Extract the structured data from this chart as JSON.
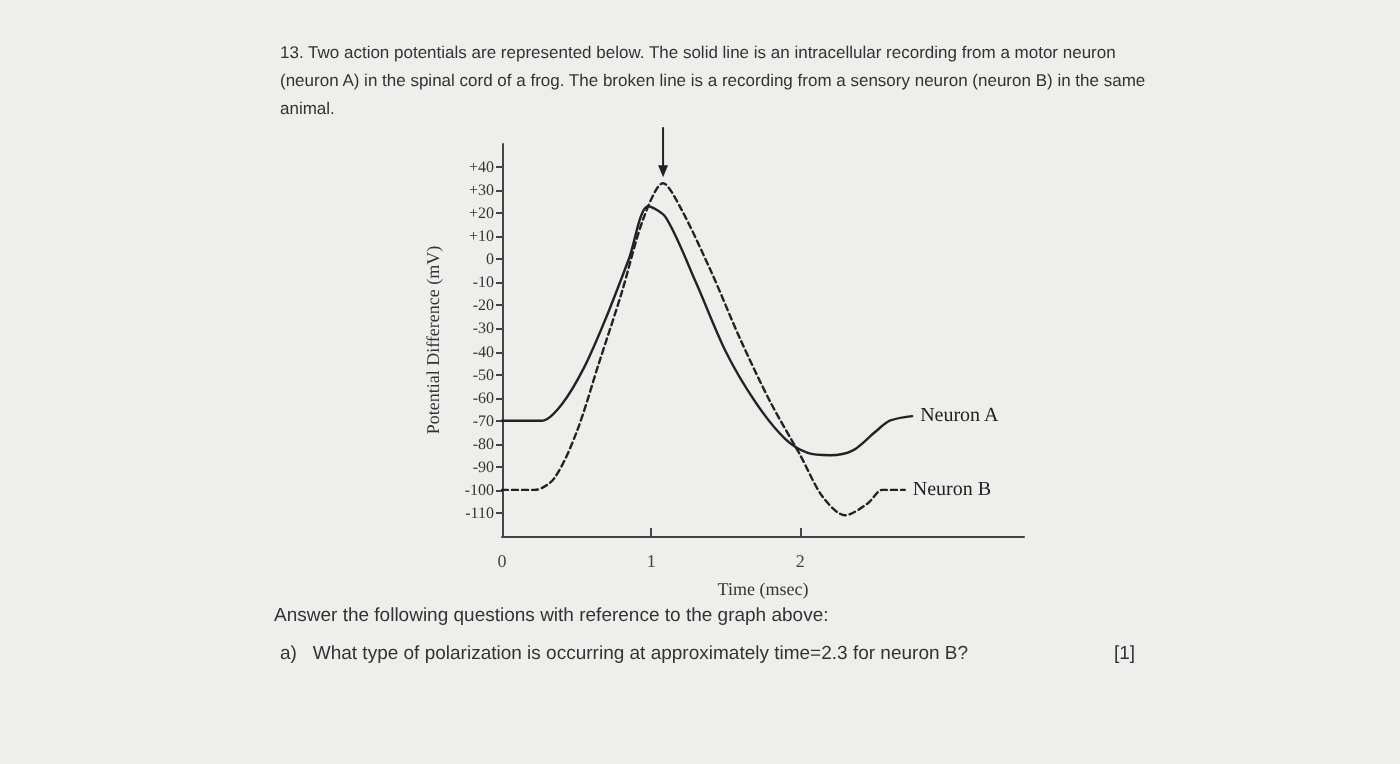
{
  "chart_data": {
    "type": "line",
    "title": "13. Two action potentials are represented below. The solid line is an intracellular recording from a motor neuron (neuron A) in the spinal cord of a frog. The broken line is a recording from a sensory neuron (neuron B) in the same animal.",
    "xlabel": "Time (msec)",
    "ylabel": "Potential Difference (mV)",
    "annotations": [
      "Answer the following questions with reference to the graph above:",
      "a)   What type of polarization is occurring at approximately time=2.3 for neuron B?",
      "[1]"
    ],
    "xlim": [
      0,
      3.5
    ],
    "xticks": [
      0,
      1,
      2
    ],
    "ylim": [
      -120,
      50
    ],
    "yticks": [
      {
        "value": 40,
        "label": "+40"
      },
      {
        "value": 30,
        "label": "+30"
      },
      {
        "value": 20,
        "label": "+20"
      },
      {
        "value": 10,
        "label": "+10"
      },
      0,
      -10,
      -20,
      -30,
      -40,
      -50,
      -60,
      -70,
      -80,
      -90,
      -100,
      -110
    ],
    "grid": false,
    "legend": false,
    "marker": "none",
    "series": [
      {
        "name": "Neuron A",
        "color": "#222222",
        "line_style": "solid",
        "x": [
          0,
          0.27,
          0.4,
          0.55,
          0.7,
          0.85,
          0.98,
          1.1,
          1.3,
          1.5,
          1.7,
          1.9,
          2.05,
          2.2,
          2.35,
          2.5,
          2.6,
          2.75
        ],
        "values": [
          -70,
          -70,
          -63,
          -47,
          -25,
          0,
          23,
          18,
          -10,
          -40,
          -62,
          -78,
          -84,
          -85,
          -83,
          -75,
          -70,
          -68
        ]
      },
      {
        "name": "Neuron B",
        "color": "#222222",
        "line_style": "dashed",
        "x": [
          0,
          0.22,
          0.35,
          0.5,
          0.65,
          0.8,
          0.95,
          1.08,
          1.2,
          1.4,
          1.6,
          1.8,
          2.0,
          2.15,
          2.3,
          2.45,
          2.55,
          2.7
        ],
        "values": [
          -100,
          -100,
          -95,
          -75,
          -45,
          -15,
          18,
          33,
          22,
          -5,
          -35,
          -62,
          -85,
          -103,
          -111,
          -106,
          -100,
          -100
        ]
      }
    ]
  }
}
